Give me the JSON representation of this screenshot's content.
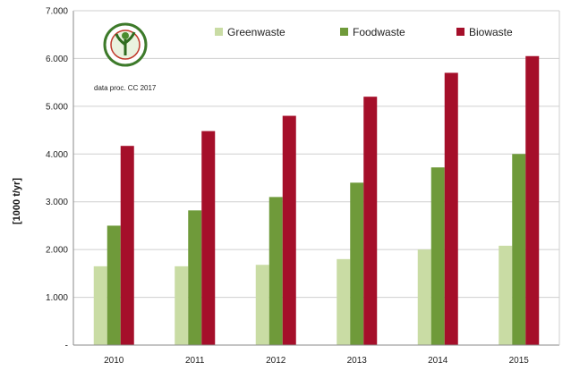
{
  "chart_data": {
    "type": "bar",
    "categories": [
      "2010",
      "2011",
      "2012",
      "2013",
      "2014",
      "2015"
    ],
    "series": [
      {
        "name": "Greenwaste",
        "color": "#c9dca4",
        "values": [
          1650,
          1650,
          1680,
          1800,
          2000,
          2080
        ]
      },
      {
        "name": "Foodwaste",
        "color": "#6f9a3a",
        "values": [
          2500,
          2820,
          3100,
          3400,
          3720,
          4000
        ]
      },
      {
        "name": "Biowaste",
        "color": "#a50f2a",
        "values": [
          4170,
          4480,
          4800,
          5200,
          5700,
          6050
        ]
      }
    ],
    "ylabel": "[1000 t/yr]",
    "ylim": [
      0,
      7000
    ],
    "yticks": [
      {
        "value": 0,
        "label": "-"
      },
      {
        "value": 1000,
        "label": "1.000"
      },
      {
        "value": 2000,
        "label": "2.000"
      },
      {
        "value": 3000,
        "label": "3.000"
      },
      {
        "value": 4000,
        "label": "4.000"
      },
      {
        "value": 5000,
        "label": "5.000"
      },
      {
        "value": 6000,
        "label": "6.000"
      },
      {
        "value": 7000,
        "label": "7.000"
      }
    ],
    "grid": true,
    "legend": "top-right",
    "annotation": "data proc. CC 2017",
    "logo": "circular-logo"
  }
}
